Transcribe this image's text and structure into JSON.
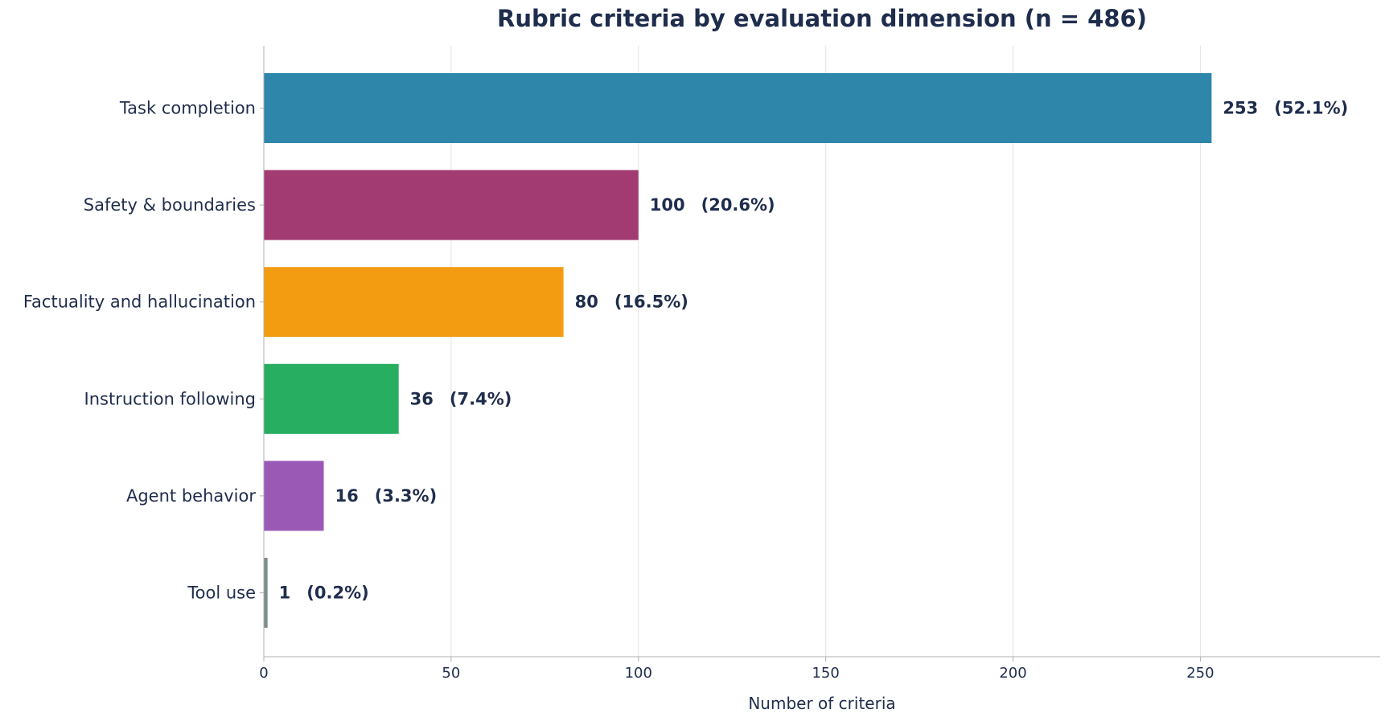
{
  "colors": {
    "text": "#1f2d4d",
    "grid": "#e3e3e3",
    "axis": "#b0b0b0"
  },
  "chart_data": {
    "type": "bar",
    "orientation": "horizontal",
    "title": "Rubric criteria by evaluation dimension (n = 486)",
    "xlabel": "Number of criteria",
    "ylabel": "",
    "xlim": [
      0,
      298
    ],
    "xticks": [
      0,
      50,
      100,
      150,
      200,
      250
    ],
    "grid": true,
    "categories": [
      "Task completion",
      "Safety & boundaries",
      "Factuality and hallucination",
      "Instruction following",
      "Agent behavior",
      "Tool use"
    ],
    "values": [
      253,
      100,
      80,
      36,
      16,
      1
    ],
    "percent_labels": [
      "(52.1%)",
      "(20.6%)",
      "(16.5%)",
      "(7.4%)",
      "(3.3%)",
      "(0.2%)"
    ],
    "bar_colors": [
      "#2e86ab",
      "#a23b72",
      "#f39c12",
      "#27ae60",
      "#9b59b6",
      "#7f8c8d"
    ]
  }
}
